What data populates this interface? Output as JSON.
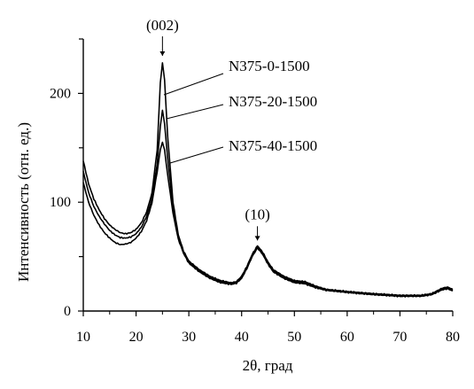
{
  "chart_data": {
    "type": "line",
    "xlabel": "2θ, град",
    "ylabel": "Интенсивность (отн. ед.)",
    "xlim": [
      10,
      80
    ],
    "ylim": [
      0,
      250
    ],
    "x_ticks": [
      10,
      20,
      30,
      40,
      50,
      60,
      70,
      80
    ],
    "y_ticks": [
      0,
      100,
      200
    ],
    "grid": false,
    "legend": "none",
    "line_color": "#000000",
    "series": [
      {
        "name": "N375-0-1500",
        "points": [
          [
            10,
            138
          ],
          [
            11,
            117
          ],
          [
            12,
            103
          ],
          [
            13,
            93
          ],
          [
            14,
            85
          ],
          [
            15,
            79
          ],
          [
            16,
            75
          ],
          [
            17,
            72
          ],
          [
            18,
            71
          ],
          [
            19,
            72
          ],
          [
            20,
            75
          ],
          [
            21,
            81
          ],
          [
            22,
            91
          ],
          [
            23,
            108
          ],
          [
            24,
            148
          ],
          [
            24.6,
            210
          ],
          [
            25,
            228
          ],
          [
            25.4,
            212
          ],
          [
            26,
            160
          ],
          [
            27,
            100
          ],
          [
            28,
            70
          ],
          [
            29,
            55
          ],
          [
            30,
            46
          ],
          [
            32,
            38
          ],
          [
            34,
            32
          ],
          [
            36,
            28
          ],
          [
            38,
            26
          ],
          [
            39,
            27
          ],
          [
            40,
            32
          ],
          [
            41,
            41
          ],
          [
            42,
            52
          ],
          [
            43,
            60
          ],
          [
            44,
            54
          ],
          [
            45,
            45
          ],
          [
            46,
            38
          ],
          [
            48,
            32
          ],
          [
            50,
            28
          ],
          [
            52,
            27
          ],
          [
            54,
            23
          ],
          [
            56,
            20
          ],
          [
            60,
            18
          ],
          [
            65,
            16
          ],
          [
            70,
            14.5
          ],
          [
            74,
            14.5
          ],
          [
            76,
            16
          ],
          [
            78,
            21
          ],
          [
            79,
            22
          ],
          [
            80,
            20
          ]
        ]
      },
      {
        "name": "N375-20-1500",
        "points": [
          [
            10,
            128
          ],
          [
            11,
            109
          ],
          [
            12,
            96
          ],
          [
            13,
            87
          ],
          [
            14,
            80
          ],
          [
            15,
            74
          ],
          [
            16,
            70
          ],
          [
            17,
            67.5
          ],
          [
            18,
            67
          ],
          [
            19,
            68
          ],
          [
            20,
            71
          ],
          [
            21,
            77
          ],
          [
            22,
            87
          ],
          [
            23,
            103
          ],
          [
            24,
            135
          ],
          [
            24.6,
            170
          ],
          [
            25,
            184
          ],
          [
            25.4,
            172
          ],
          [
            26,
            140
          ],
          [
            27,
            95
          ],
          [
            28,
            68
          ],
          [
            29,
            54
          ],
          [
            30,
            45
          ],
          [
            32,
            37
          ],
          [
            34,
            31
          ],
          [
            36,
            27
          ],
          [
            38,
            25
          ],
          [
            39,
            26
          ],
          [
            40,
            31
          ],
          [
            41,
            40
          ],
          [
            42,
            51
          ],
          [
            43,
            59
          ],
          [
            44,
            53
          ],
          [
            45,
            44
          ],
          [
            46,
            37
          ],
          [
            48,
            31
          ],
          [
            50,
            27
          ],
          [
            52,
            26
          ],
          [
            54,
            22
          ],
          [
            56,
            19.5
          ],
          [
            60,
            17.5
          ],
          [
            65,
            15.5
          ],
          [
            70,
            14
          ],
          [
            74,
            14
          ],
          [
            76,
            15.5
          ],
          [
            78,
            20
          ],
          [
            79,
            21
          ],
          [
            80,
            19
          ]
        ]
      },
      {
        "name": "N375-40-1500",
        "points": [
          [
            10,
            118
          ],
          [
            11,
            100
          ],
          [
            12,
            88
          ],
          [
            13,
            79
          ],
          [
            14,
            72
          ],
          [
            15,
            67
          ],
          [
            16,
            63
          ],
          [
            17,
            61
          ],
          [
            18,
            61.5
          ],
          [
            19,
            63
          ],
          [
            20,
            67
          ],
          [
            21,
            73
          ],
          [
            22,
            83
          ],
          [
            23,
            99
          ],
          [
            24,
            128
          ],
          [
            24.6,
            148
          ],
          [
            25,
            155
          ],
          [
            25.4,
            148
          ],
          [
            26,
            125
          ],
          [
            27,
            90
          ],
          [
            28,
            66
          ],
          [
            29,
            53
          ],
          [
            30,
            44
          ],
          [
            32,
            36
          ],
          [
            34,
            30
          ],
          [
            36,
            26
          ],
          [
            38,
            24.5
          ],
          [
            39,
            25.5
          ],
          [
            40,
            30
          ],
          [
            41,
            39
          ],
          [
            42,
            50
          ],
          [
            43,
            58
          ],
          [
            44,
            52
          ],
          [
            45,
            43
          ],
          [
            46,
            36
          ],
          [
            48,
            30
          ],
          [
            50,
            26
          ],
          [
            52,
            25
          ],
          [
            54,
            21.5
          ],
          [
            56,
            19
          ],
          [
            60,
            17
          ],
          [
            65,
            15
          ],
          [
            70,
            13.5
          ],
          [
            74,
            13.5
          ],
          [
            76,
            15
          ],
          [
            78,
            19.5
          ],
          [
            79,
            20.5
          ],
          [
            80,
            18.5
          ]
        ]
      }
    ],
    "annotations": [
      {
        "text": "(002)",
        "x": 25,
        "y": 228
      },
      {
        "text": "(10)",
        "x": 43,
        "y": 60
      }
    ]
  }
}
